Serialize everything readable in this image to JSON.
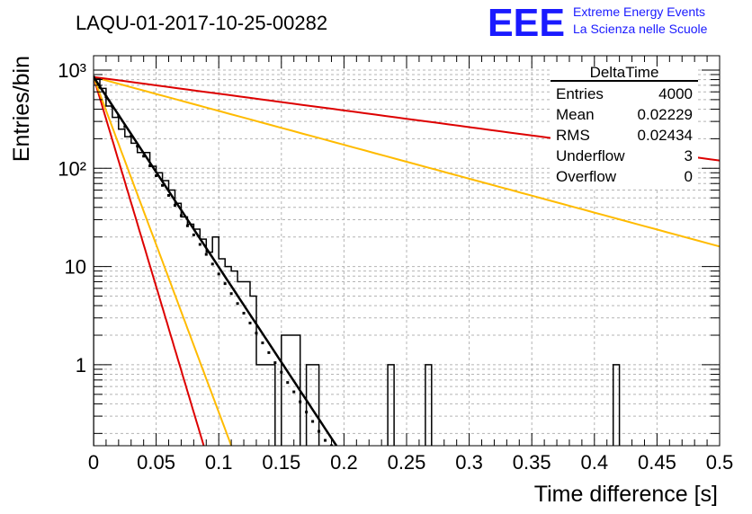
{
  "header": {
    "title": "LAQU-01-2017-10-25-00282",
    "logo_text": "EEE",
    "logo_line1": "Extreme Energy Events",
    "logo_line2": "La Scienza nelle Scuole"
  },
  "stats": {
    "title": "DeltaTime",
    "rows": [
      {
        "label": "Entries",
        "value": "4000"
      },
      {
        "label": "Mean",
        "value": "0.02229"
      },
      {
        "label": "RMS",
        "value": "0.02434"
      },
      {
        "label": "Underflow",
        "value": "3"
      },
      {
        "label": "Overflow",
        "value": "0"
      }
    ]
  },
  "colors": {
    "histogram": "#000000",
    "fit": "#000000",
    "red": "#dd0000",
    "orange": "#ffbb00",
    "grid": "#b4b4b4",
    "logo": "#1a1aff"
  },
  "chart_data": {
    "type": "histogram",
    "title": "LAQU-01-2017-10-25-00282",
    "xlabel": "Time difference [s]",
    "ylabel": "Entries/bin",
    "xlim": [
      0,
      0.5
    ],
    "ylim": [
      0.15,
      1400
    ],
    "yscale": "log",
    "grid": true,
    "legend": "top-right",
    "x_ticks": [
      "0",
      "0.05",
      "0.1",
      "0.15",
      "0.2",
      "0.25",
      "0.3",
      "0.35",
      "0.4",
      "0.45",
      "0.5"
    ],
    "y_ticks": [
      "1",
      "10",
      "10²",
      "10³"
    ],
    "bin_width": 0.005,
    "bins": [
      {
        "x": 0.0,
        "y": 810
      },
      {
        "x": 0.005,
        "y": 650
      },
      {
        "x": 0.01,
        "y": 430
      },
      {
        "x": 0.015,
        "y": 330
      },
      {
        "x": 0.02,
        "y": 250
      },
      {
        "x": 0.025,
        "y": 210
      },
      {
        "x": 0.03,
        "y": 180
      },
      {
        "x": 0.035,
        "y": 145
      },
      {
        "x": 0.04,
        "y": 145
      },
      {
        "x": 0.045,
        "y": 105
      },
      {
        "x": 0.05,
        "y": 90
      },
      {
        "x": 0.055,
        "y": 75
      },
      {
        "x": 0.06,
        "y": 60
      },
      {
        "x": 0.065,
        "y": 44
      },
      {
        "x": 0.07,
        "y": 32
      },
      {
        "x": 0.075,
        "y": 27
      },
      {
        "x": 0.08,
        "y": 24
      },
      {
        "x": 0.085,
        "y": 19
      },
      {
        "x": 0.09,
        "y": 14
      },
      {
        "x": 0.095,
        "y": 20
      },
      {
        "x": 0.1,
        "y": 12
      },
      {
        "x": 0.105,
        "y": 10
      },
      {
        "x": 0.11,
        "y": 9
      },
      {
        "x": 0.115,
        "y": 7
      },
      {
        "x": 0.12,
        "y": 7
      },
      {
        "x": 0.125,
        "y": 5
      },
      {
        "x": 0.13,
        "y": 1
      },
      {
        "x": 0.135,
        "y": 1
      },
      {
        "x": 0.14,
        "y": 1
      },
      {
        "x": 0.145,
        "y": 0
      },
      {
        "x": 0.15,
        "y": 2
      },
      {
        "x": 0.155,
        "y": 2
      },
      {
        "x": 0.16,
        "y": 2
      },
      {
        "x": 0.165,
        "y": 0
      },
      {
        "x": 0.17,
        "y": 1
      },
      {
        "x": 0.175,
        "y": 1
      },
      {
        "x": 0.235,
        "y": 1
      },
      {
        "x": 0.265,
        "y": 1
      },
      {
        "x": 0.415,
        "y": 1
      }
    ],
    "fit_points": [
      {
        "x": 0.0,
        "y": 850
      },
      {
        "x": 0.005,
        "y": 675
      },
      {
        "x": 0.01,
        "y": 535
      },
      {
        "x": 0.015,
        "y": 425
      },
      {
        "x": 0.02,
        "y": 340
      },
      {
        "x": 0.025,
        "y": 265
      },
      {
        "x": 0.03,
        "y": 212
      },
      {
        "x": 0.035,
        "y": 168
      },
      {
        "x": 0.04,
        "y": 133
      },
      {
        "x": 0.045,
        "y": 106
      },
      {
        "x": 0.05,
        "y": 84
      },
      {
        "x": 0.055,
        "y": 67
      },
      {
        "x": 0.06,
        "y": 53
      },
      {
        "x": 0.065,
        "y": 42
      },
      {
        "x": 0.07,
        "y": 33
      },
      {
        "x": 0.075,
        "y": 26
      },
      {
        "x": 0.08,
        "y": 21
      },
      {
        "x": 0.085,
        "y": 16.8
      },
      {
        "x": 0.09,
        "y": 13.3
      },
      {
        "x": 0.095,
        "y": 10.6
      },
      {
        "x": 0.1,
        "y": 8.4
      },
      {
        "x": 0.105,
        "y": 6.7
      },
      {
        "x": 0.11,
        "y": 5.3
      },
      {
        "x": 0.115,
        "y": 4.2
      },
      {
        "x": 0.12,
        "y": 3.35
      },
      {
        "x": 0.125,
        "y": 2.66
      },
      {
        "x": 0.13,
        "y": 2.1
      },
      {
        "x": 0.135,
        "y": 1.67
      },
      {
        "x": 0.14,
        "y": 1.33
      },
      {
        "x": 0.145,
        "y": 1.05
      },
      {
        "x": 0.15,
        "y": 0.84
      },
      {
        "x": 0.155,
        "y": 0.66
      },
      {
        "x": 0.16,
        "y": 0.53
      },
      {
        "x": 0.165,
        "y": 0.42
      },
      {
        "x": 0.17,
        "y": 0.33
      },
      {
        "x": 0.175,
        "y": 0.265
      },
      {
        "x": 0.18,
        "y": 0.21
      },
      {
        "x": 0.185,
        "y": 0.17
      },
      {
        "x": 0.19,
        "y": 0.15
      }
    ],
    "series": [
      {
        "name": "fit",
        "color": "#000000",
        "type": "exponential",
        "x": [
          0,
          0.194
        ],
        "y": [
          850,
          0.15
        ]
      },
      {
        "name": "red-steep",
        "color": "#dd0000",
        "type": "exponential",
        "x": [
          0,
          0.088
        ],
        "y": [
          850,
          0.15
        ]
      },
      {
        "name": "orange-steep",
        "color": "#ffbb00",
        "type": "exponential",
        "x": [
          0,
          0.11
        ],
        "y": [
          850,
          0.15
        ]
      },
      {
        "name": "orange-shallow",
        "color": "#ffbb00",
        "type": "exponential",
        "x": [
          0,
          0.5
        ],
        "y": [
          850,
          16
        ]
      },
      {
        "name": "red-shallow",
        "color": "#dd0000",
        "type": "exponential",
        "x": [
          0,
          0.5
        ],
        "y": [
          850,
          120
        ]
      }
    ]
  }
}
